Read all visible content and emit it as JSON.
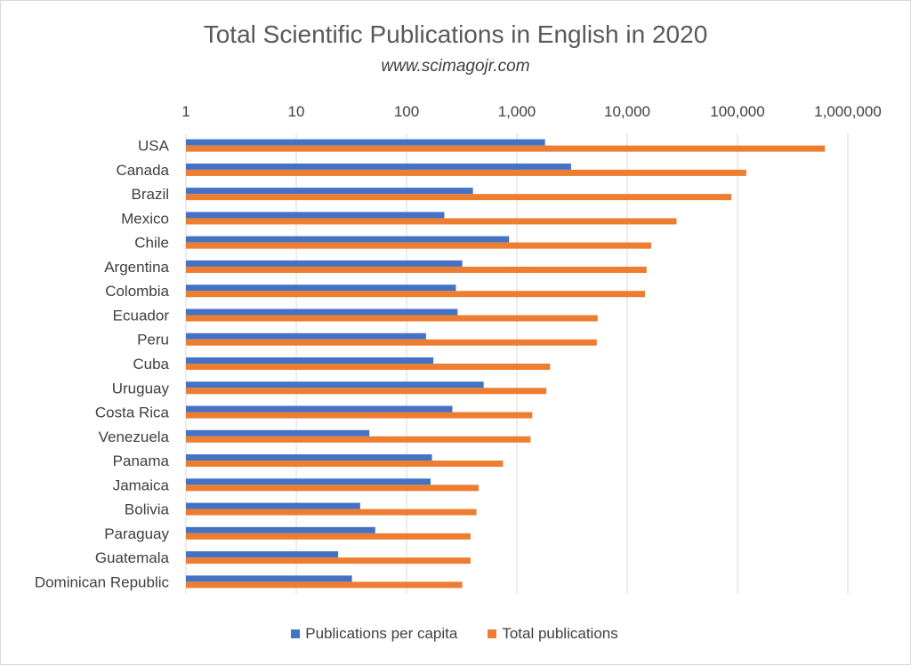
{
  "chart_data": {
    "type": "bar",
    "orientation": "horizontal",
    "title": "Total Scientific Publications in English in 2020",
    "subtitle": "www.scimagojr.com",
    "x_scale": "log",
    "xlim": [
      1,
      1000000
    ],
    "x_ticks": [
      "1",
      "10",
      "100",
      "1,000",
      "10,000",
      "100,000",
      "1,000,000"
    ],
    "grid": true,
    "legend_position": "bottom",
    "categories": [
      "USA",
      "Canada",
      "Brazil",
      "Mexico",
      "Chile",
      "Argentina",
      "Colombia",
      "Ecuador",
      "Peru",
      "Cuba",
      "Uruguay",
      "Costa Rica",
      "Venezuela",
      "Panama",
      "Jamaica",
      "Bolivia",
      "Paraguay",
      "Guatemala",
      "Dominican Republic"
    ],
    "series": [
      {
        "name": "Publications per capita",
        "color": "#4472C4",
        "values": [
          1800,
          3100,
          400,
          220,
          850,
          320,
          280,
          290,
          150,
          175,
          500,
          260,
          46,
          170,
          165,
          38,
          52,
          24,
          32
        ]
      },
      {
        "name": "Total publications",
        "color": "#ED7D31",
        "values": [
          620000,
          120000,
          88000,
          28000,
          16500,
          15000,
          14500,
          5400,
          5300,
          2000,
          1850,
          1380,
          1330,
          750,
          450,
          430,
          380,
          380,
          320
        ]
      }
    ]
  }
}
